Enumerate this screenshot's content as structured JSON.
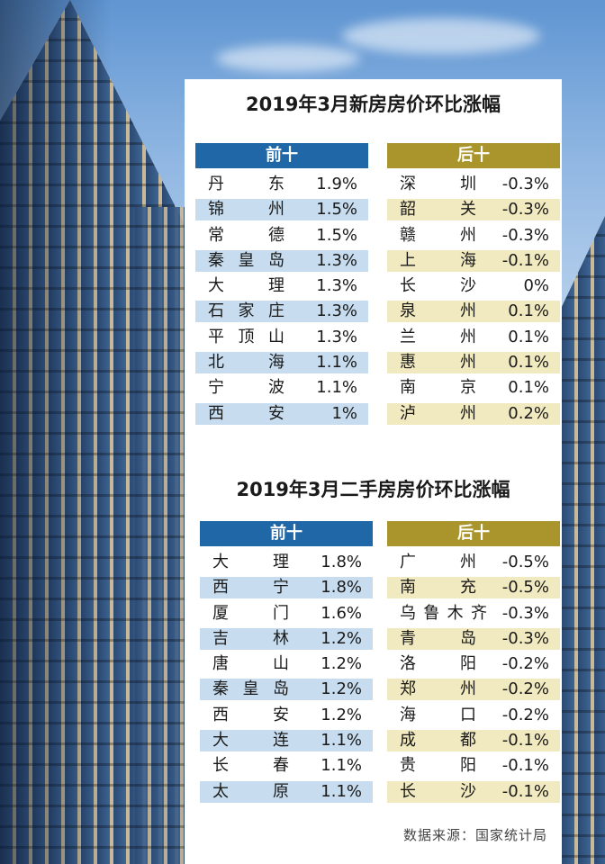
{
  "chart_data": [
    {
      "type": "table",
      "title": "2019年3月新房房价环比涨幅",
      "groups": [
        {
          "name": "前十",
          "color": "#1f67a6",
          "rows": [
            {
              "city": "丹 东",
              "value": "1.9%"
            },
            {
              "city": "锦 州",
              "value": "1.5%"
            },
            {
              "city": "常 德",
              "value": "1.5%"
            },
            {
              "city": "秦皇岛",
              "value": "1.3%"
            },
            {
              "city": "大 理",
              "value": "1.3%"
            },
            {
              "city": "石家庄",
              "value": "1.3%"
            },
            {
              "city": "平顶山",
              "value": "1.3%"
            },
            {
              "city": "北 海",
              "value": "1.1%"
            },
            {
              "city": "宁 波",
              "value": "1.1%"
            },
            {
              "city": "西 安",
              "value": "1%"
            }
          ]
        },
        {
          "name": "后十",
          "color": "#a9952b",
          "rows": [
            {
              "city": "深 圳",
              "value": "-0.3%"
            },
            {
              "city": "韶 关",
              "value": "-0.3%"
            },
            {
              "city": "赣 州",
              "value": "-0.3%"
            },
            {
              "city": "上 海",
              "value": "-0.1%"
            },
            {
              "city": "长 沙",
              "value": "0%"
            },
            {
              "city": "泉 州",
              "value": "0.1%"
            },
            {
              "city": "兰 州",
              "value": "0.1%"
            },
            {
              "city": "惠 州",
              "value": "0.1%"
            },
            {
              "city": "南 京",
              "value": "0.1%"
            },
            {
              "city": "泸 州",
              "value": "0.2%"
            }
          ]
        }
      ]
    },
    {
      "type": "table",
      "title": "2019年3月二手房房价环比涨幅",
      "groups": [
        {
          "name": "前十",
          "color": "#1f67a6",
          "rows": [
            {
              "city": "大 理",
              "value": "1.8%"
            },
            {
              "city": "西 宁",
              "value": "1.8%"
            },
            {
              "city": "厦 门",
              "value": "1.6%"
            },
            {
              "city": "吉 林",
              "value": "1.2%"
            },
            {
              "city": "唐 山",
              "value": "1.2%"
            },
            {
              "city": "秦皇岛",
              "value": "1.2%"
            },
            {
              "city": "西 安",
              "value": "1.2%"
            },
            {
              "city": "大 连",
              "value": "1.1%"
            },
            {
              "city": "长 春",
              "value": "1.1%"
            },
            {
              "city": "太 原",
              "value": "1.1%"
            }
          ]
        },
        {
          "name": "后十",
          "color": "#a9952b",
          "rows": [
            {
              "city": "广 州",
              "value": "-0.5%"
            },
            {
              "city": "南 充",
              "value": "-0.5%"
            },
            {
              "city": "乌鲁木齐",
              "value": "-0.3%"
            },
            {
              "city": "青 岛",
              "value": "-0.3%"
            },
            {
              "city": "洛 阳",
              "value": "-0.2%"
            },
            {
              "city": "郑 州",
              "value": "-0.2%"
            },
            {
              "city": "海 口",
              "value": "-0.2%"
            },
            {
              "city": "成 都",
              "value": "-0.1%"
            },
            {
              "city": "贵 阳",
              "value": "-0.1%"
            },
            {
              "city": "长 沙",
              "value": "-0.1%"
            }
          ]
        }
      ]
    }
  ],
  "source": "数据来源：国家统计局",
  "colors": {
    "blue_header": "#1f67a6",
    "blue_stripe": "#c7dcee",
    "gold_header": "#a9952b",
    "gold_stripe": "#f1e9bf"
  }
}
